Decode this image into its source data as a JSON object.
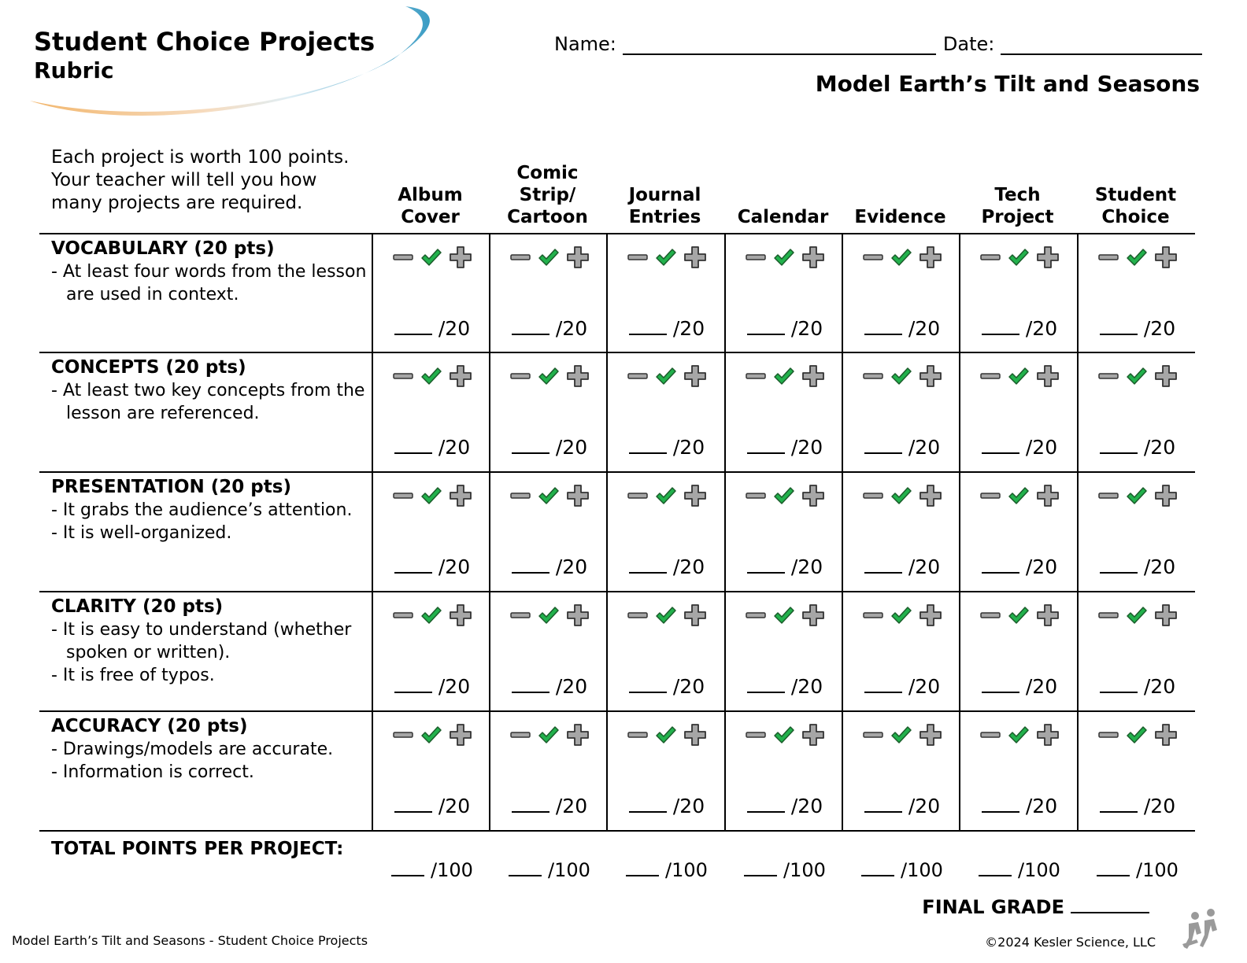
{
  "header": {
    "title": "Student Choice Projects",
    "subtitle": "Rubric",
    "name_label": "Name:",
    "date_label": "Date:",
    "topic": "Model Earth’s Tilt and Seasons"
  },
  "intro": "Each project is worth 100 points. Your teacher will tell you how many projects are required.",
  "columns": [
    {
      "label": "Album\nCover"
    },
    {
      "label": "Comic\nStrip/\nCartoon"
    },
    {
      "label": "Journal\nEntries"
    },
    {
      "label": "Calendar"
    },
    {
      "label": "Evidence"
    },
    {
      "label": "Tech\nProject"
    },
    {
      "label": "Student\nChoice"
    }
  ],
  "criteria": [
    {
      "title": "VOCABULARY (20 pts)",
      "bullets": [
        "- At least four words from the lesson are used in context."
      ],
      "max": "/20"
    },
    {
      "title": "CONCEPTS (20 pts)",
      "bullets": [
        "- At least two key concepts from the lesson are referenced."
      ],
      "max": "/20"
    },
    {
      "title": "PRESENTATION (20 pts)",
      "bullets": [
        "-  It grabs the audience’s attention.",
        "-  It is well-organized."
      ],
      "max": "/20"
    },
    {
      "title": "CLARITY (20 pts)",
      "bullets": [
        "- It is easy to understand (whether spoken or written).",
        "- It is free of typos."
      ],
      "max": "/20"
    },
    {
      "title": "ACCURACY (20 pts)",
      "bullets": [
        "- Drawings/models are accurate.",
        "- Information is correct."
      ],
      "max": "/20"
    }
  ],
  "total": {
    "label": "TOTAL POINTS PER PROJECT:",
    "max": "/100"
  },
  "final_grade_label": "FINAL GRADE",
  "footer": {
    "left": "Model Earth’s Tilt and Seasons - Student Choice Projects",
    "right": "©2024  Kesler Science, LLC"
  },
  "colors": {
    "check": "#22b14c",
    "minus": "#a6a6a6",
    "plus": "#a6a6a6",
    "swoosh_blue": "#3a9cc4",
    "swoosh_orange": "#f2b66d"
  },
  "icons": {
    "minus": "minus-icon",
    "check": "check-icon",
    "plus": "plus-icon",
    "logo": "people-logo-icon"
  }
}
